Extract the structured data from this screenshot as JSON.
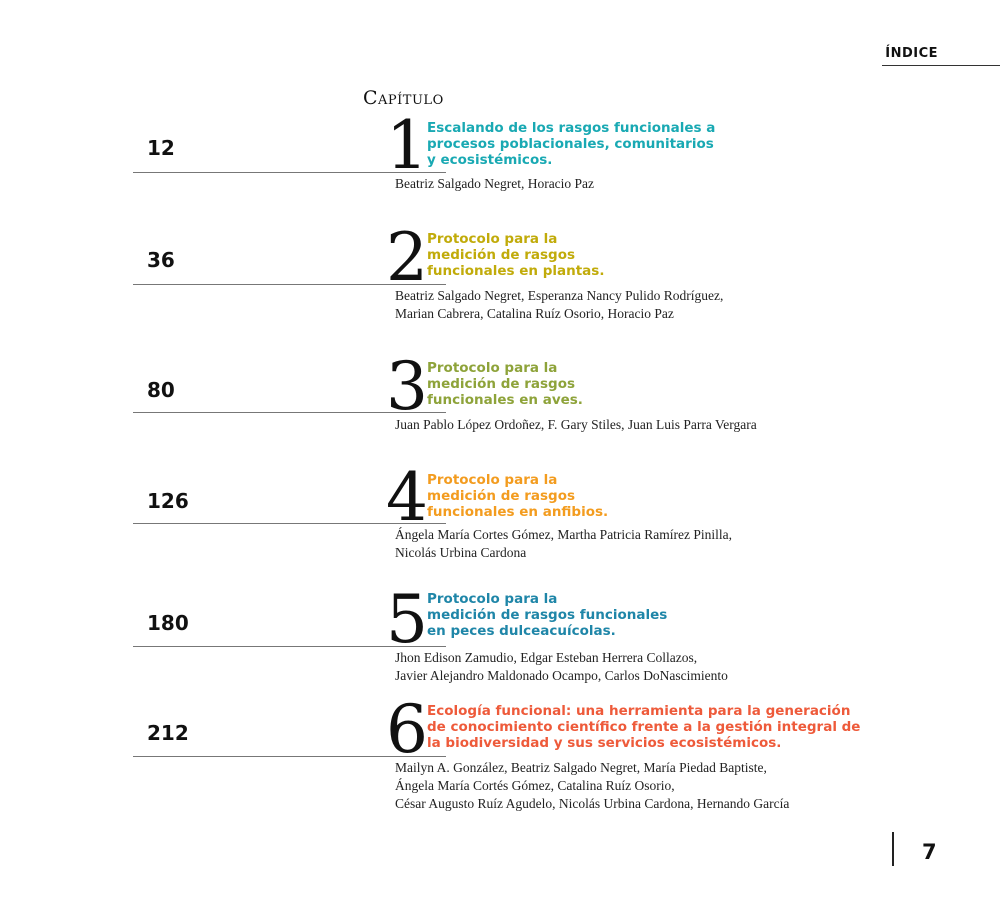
{
  "header": {
    "label": "ÍNDICE"
  },
  "section_heading": "Capítulo",
  "entries": [
    {
      "page": "12",
      "chapter": "1",
      "color": "#19a9b3",
      "title_lines": [
        "Escalando de los rasgos funcionales a",
        "procesos poblacionales, comunitarios",
        "y ecosistémicos."
      ],
      "author_lines": [
        "Beatriz Salgado Negret, Horacio Paz"
      ]
    },
    {
      "page": "36",
      "chapter": "2",
      "color": "#c1ab0a",
      "title_lines": [
        "Protocolo para la",
        "medición de rasgos",
        "funcionales en plantas."
      ],
      "author_lines": [
        "Beatriz Salgado Negret, Esperanza Nancy Pulido Rodríguez,",
        "Marian Cabrera, Catalina Ruíz Osorio, Horacio Paz"
      ]
    },
    {
      "page": "80",
      "chapter": "3",
      "color": "#8ea33a",
      "title_lines": [
        "Protocolo para la",
        "medición de rasgos",
        "funcionales en aves."
      ],
      "author_lines": [
        "Juan Pablo López Ordoñez, F. Gary Stiles, Juan Luis Parra Vergara"
      ]
    },
    {
      "page": "126",
      "chapter": "4",
      "color": "#f39c1f",
      "title_lines": [
        "Protocolo para la",
        "medición de rasgos",
        "funcionales en anfibios."
      ],
      "author_lines": [
        "Ángela María Cortes Gómez, Martha Patricia Ramírez Pinilla,",
        "Nicolás Urbina Cardona"
      ]
    },
    {
      "page": "180",
      "chapter": "5",
      "color": "#1f86a8",
      "title_lines": [
        "Protocolo para la",
        "medición de rasgos funcionales",
        "en peces dulceacuícolas."
      ],
      "author_lines": [
        "Jhon Edison Zamudio, Edgar Esteban Herrera Collazos,",
        "Javier Alejandro Maldonado Ocampo, Carlos DoNascimiento"
      ]
    },
    {
      "page": "212",
      "chapter": "6",
      "color": "#ee5a3a",
      "title_lines": [
        "Ecología funcional: una herramienta para la generación",
        "de conocimiento científico frente a la gestión integral de",
        "la biodiversidad y sus servicios ecosistémicos."
      ],
      "author_lines": [
        "Mailyn A. González, Beatriz Salgado Negret, María Piedad Baptiste,",
        "Ángela María Cortés Gómez, Catalina Ruíz Osorio,",
        "César Augusto Ruíz Agudelo, Nicolás Urbina Cardona, Hernando García"
      ]
    }
  ],
  "footer": {
    "page_number": "7"
  }
}
